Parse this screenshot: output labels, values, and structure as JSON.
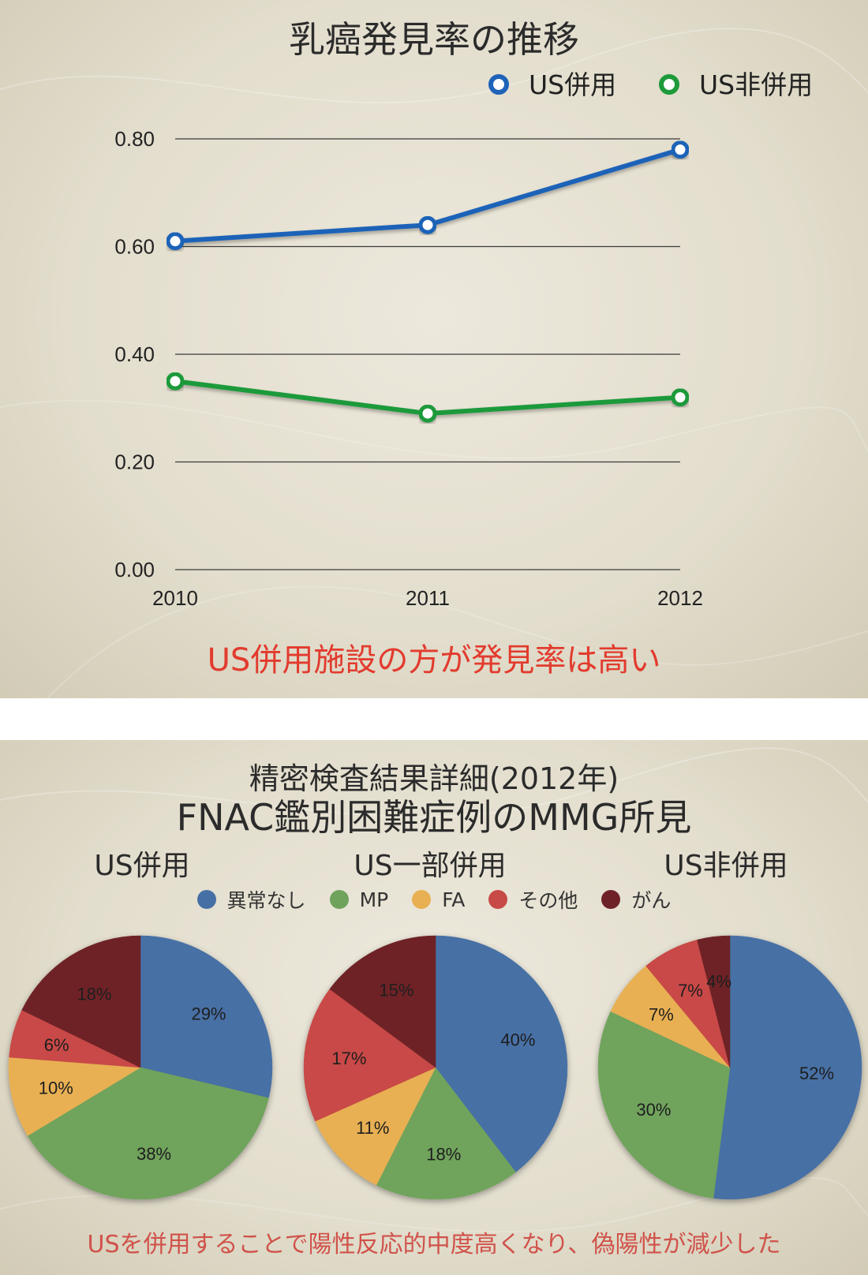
{
  "slide1": {
    "title": "乳癌発見率の推移",
    "conclusion": "US併用施設の方が発見率は高い",
    "conclusion_color": "#e23b2e"
  },
  "slide2": {
    "title_line1": "精密検査結果詳細(2012年)",
    "title_line2": "FNAC鑑別困難症例のMMG所見",
    "conclusion": "USを併用することで陽性反応的中度高くなり、偽陽性が減少した",
    "conclusion_color": "#d0524a"
  },
  "chart_data": [
    {
      "type": "line",
      "title": "乳癌発見率の推移",
      "x": [
        "2010",
        "2011",
        "2012"
      ],
      "y_ticks": [
        "0.00",
        "0.20",
        "0.40",
        "0.60",
        "0.80"
      ],
      "ylim": [
        0,
        0.8
      ],
      "grid": true,
      "legend_position": "top-right",
      "series": [
        {
          "name": "US併用",
          "values": [
            0.61,
            0.64,
            0.78
          ],
          "color": "#1f63b8"
        },
        {
          "name": "US非併用",
          "values": [
            0.35,
            0.29,
            0.32
          ],
          "color": "#1e9a3a"
        }
      ]
    },
    {
      "type": "pie",
      "legend": [
        {
          "label": "異常なし",
          "color": "#4670a5"
        },
        {
          "label": "MP",
          "color": "#6fa35c"
        },
        {
          "label": "FA",
          "color": "#e8b052"
        },
        {
          "label": "その他",
          "color": "#c84a47"
        },
        {
          "label": "がん",
          "color": "#6e2228"
        }
      ],
      "pies": [
        {
          "title": "US併用",
          "values": [
            29,
            38,
            10,
            6,
            18
          ],
          "labels": [
            "29%",
            "38%",
            "10%",
            "6%",
            "18%"
          ]
        },
        {
          "title": "US一部併用",
          "values": [
            40,
            18,
            11,
            17,
            15
          ],
          "labels": [
            "40%",
            "18%",
            "11%",
            "17%",
            "15%"
          ]
        },
        {
          "title": "US非併用",
          "values": [
            52,
            30,
            7,
            7,
            4
          ],
          "labels": [
            "52%",
            "30%",
            "7%",
            "7%",
            "4%"
          ]
        }
      ]
    }
  ]
}
